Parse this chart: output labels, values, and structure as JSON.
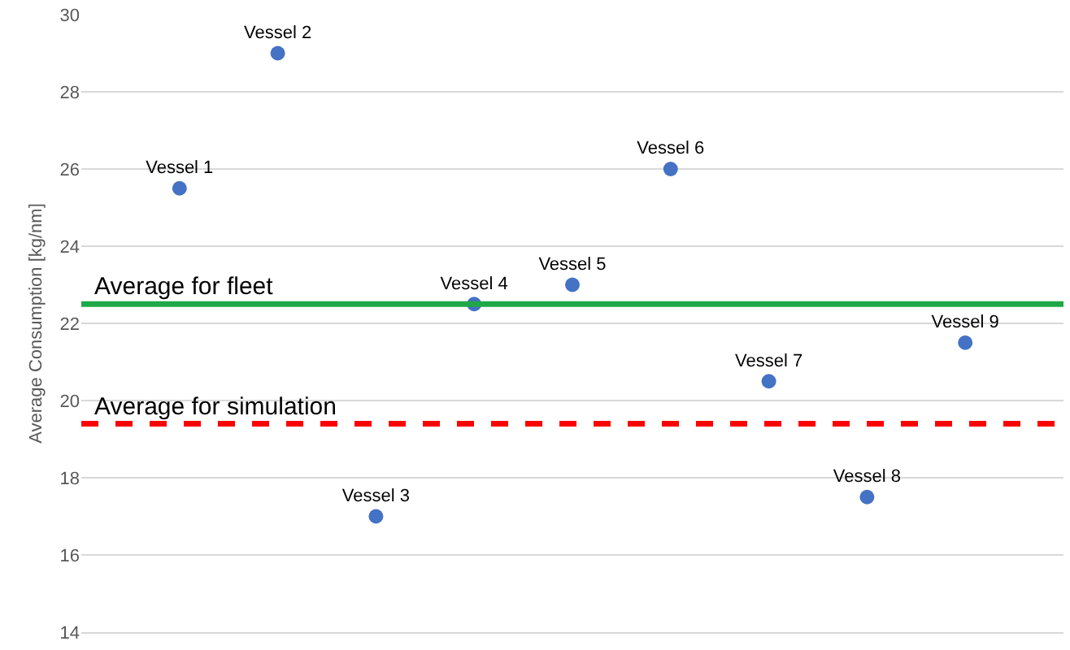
{
  "chart_data": {
    "type": "scatter",
    "ylabel": "Average Consumption [kg/nm]",
    "categories": [
      null,
      null,
      null,
      null,
      null,
      null,
      null,
      null,
      null
    ],
    "series": [
      {
        "name": "Vessel 1",
        "color": "#4472c4",
        "values": [
          25.5,
          null,
          null,
          null,
          null,
          null,
          null,
          null,
          null
        ]
      },
      {
        "name": "Vessel 2",
        "color": "#4472c4",
        "values": [
          null,
          29,
          null,
          null,
          null,
          null,
          null,
          null,
          null
        ]
      },
      {
        "name": "Vessel 3",
        "color": "#4472c4",
        "values": [
          null,
          null,
          17,
          null,
          null,
          null,
          null,
          null,
          null
        ]
      },
      {
        "name": "Vessel 4",
        "color": "#4472c4",
        "values": [
          null,
          null,
          null,
          22.5,
          null,
          null,
          null,
          null,
          null
        ]
      },
      {
        "name": "Vessel 5",
        "color": "#4472c4",
        "values": [
          null,
          null,
          null,
          null,
          23,
          null,
          null,
          null,
          null
        ]
      },
      {
        "name": "Vessel 6",
        "color": "#4472c4",
        "values": [
          null,
          null,
          null,
          null,
          null,
          26,
          null,
          null,
          null
        ]
      },
      {
        "name": "Vessel 7",
        "color": "#4472c4",
        "values": [
          null,
          null,
          null,
          null,
          null,
          null,
          20.5,
          null,
          null
        ]
      },
      {
        "name": "Vessel 8",
        "color": "#4472c4",
        "values": [
          null,
          null,
          null,
          null,
          null,
          null,
          null,
          17.5,
          null
        ]
      },
      {
        "name": "Vessel 9",
        "color": "#4472c4",
        "values": [
          null,
          null,
          null,
          null,
          null,
          null,
          null,
          null,
          21.5
        ]
      }
    ],
    "ylim": [
      14,
      30
    ],
    "yticks": [
      14,
      16,
      18,
      20,
      22,
      24,
      26,
      28,
      30
    ],
    "ref_lines": [
      {
        "axis": "y",
        "value": 22.5,
        "label": "Average for fleet",
        "color": "#1fa848",
        "line_style": "solid"
      },
      {
        "axis": "y",
        "value": 19.4,
        "label": "Average for simulation",
        "color": "#ff0000",
        "line_style": "dashed"
      }
    ],
    "grid": "y",
    "marker": "circle",
    "legend": false,
    "tick_labels": "y"
  }
}
